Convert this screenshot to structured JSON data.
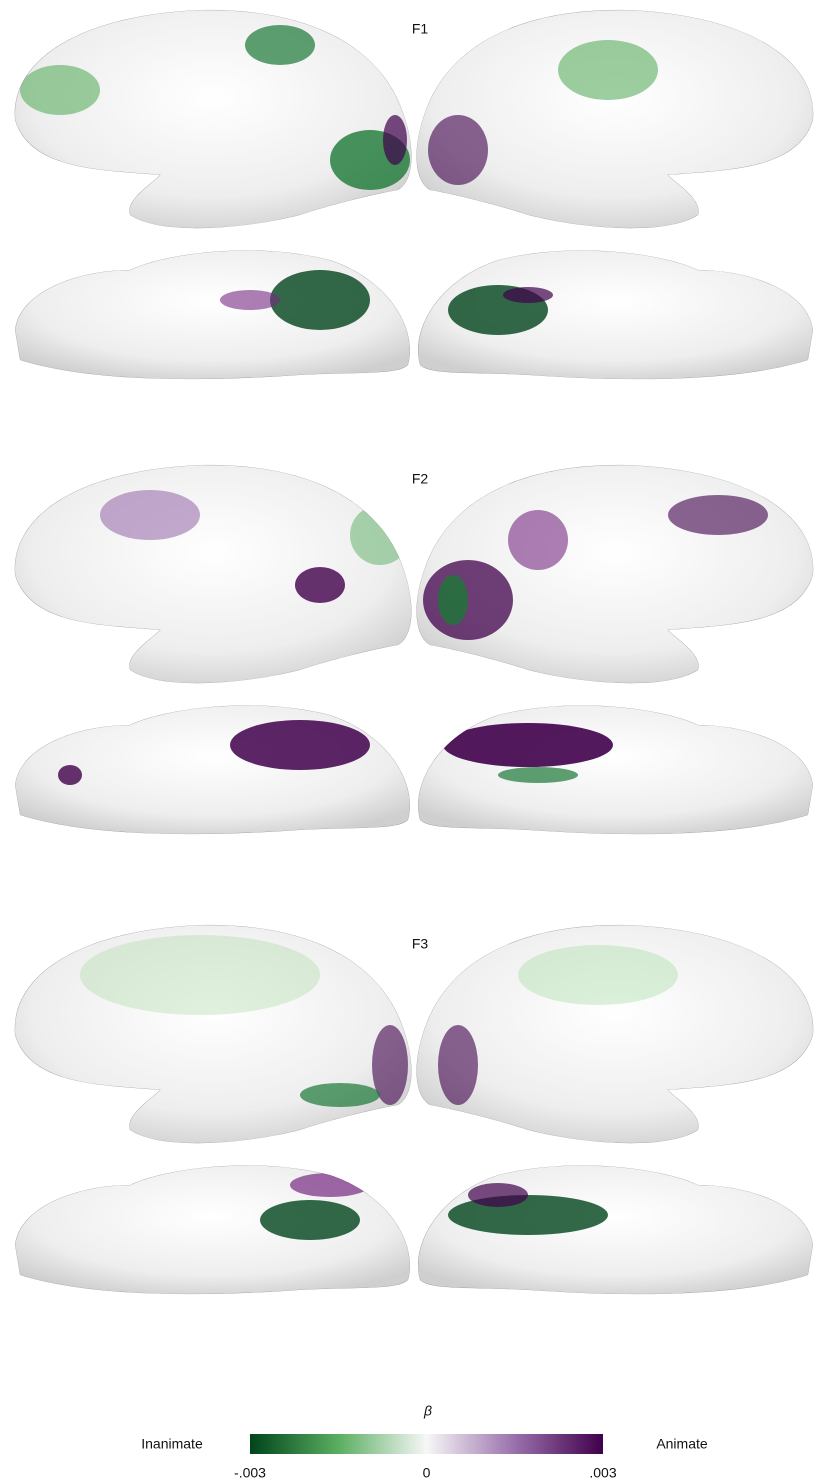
{
  "panels": [
    {
      "label": "F1"
    },
    {
      "label": "F2"
    },
    {
      "label": "F3"
    }
  ],
  "colorbar": {
    "title": "β",
    "left_label": "Inanimate",
    "right_label": "Animate",
    "colors": [
      "#00441b",
      "#5aae61",
      "#f7f7f7",
      "#9970ab",
      "#40004b"
    ],
    "ticks": [
      {
        "value": -0.003,
        "label": "-.003"
      },
      {
        "value": 0,
        "label": "0"
      },
      {
        "value": 0.003,
        "label": ".003"
      }
    ]
  }
}
